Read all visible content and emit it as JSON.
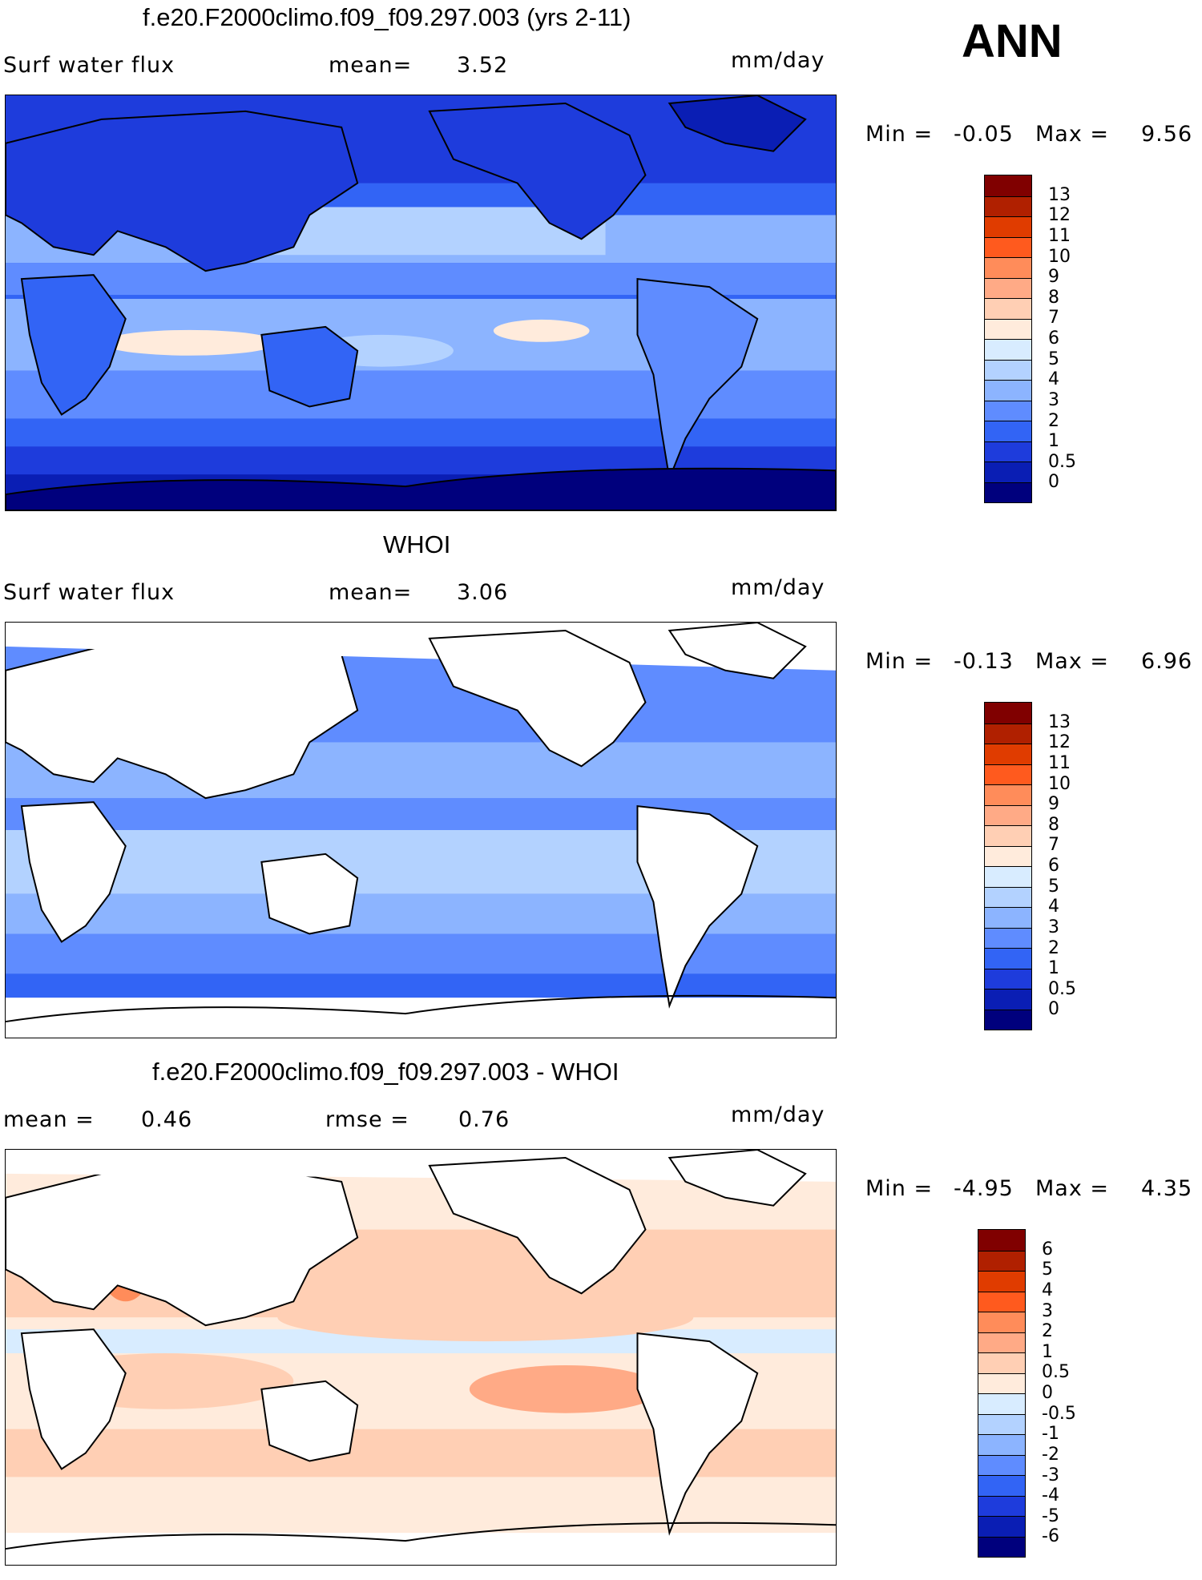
{
  "season": "ANN",
  "units": "mm/day",
  "panels": [
    {
      "id": "model",
      "title": "f.e20.F2000climo.f09_f09.297.003 (yrs 2-11)",
      "left_label": "Surf water flux",
      "stat1_label": "mean=",
      "stat1_value": "3.52",
      "minmax": {
        "min_label": "Min =",
        "min": "-0.05",
        "max_label": "Max =",
        "max": "9.56"
      },
      "levels": [
        "13",
        "12",
        "11",
        "10",
        "9",
        "8",
        "7",
        "6",
        "5",
        "4",
        "3",
        "2",
        "1",
        "0.5",
        "0"
      ]
    },
    {
      "id": "obs",
      "title": "WHOI",
      "left_label": "Surf water flux",
      "stat1_label": "mean=",
      "stat1_value": "3.06",
      "minmax": {
        "min_label": "Min =",
        "min": "-0.13",
        "max_label": "Max =",
        "max": "6.96"
      },
      "levels": [
        "13",
        "12",
        "11",
        "10",
        "9",
        "8",
        "7",
        "6",
        "5",
        "4",
        "3",
        "2",
        "1",
        "0.5",
        "0"
      ]
    },
    {
      "id": "diff",
      "title": "f.e20.F2000climo.f09_f09.297.003 - WHOI",
      "left_label": "mean =",
      "left_value": "0.46",
      "stat1_label": "rmse =",
      "stat1_value": "0.76",
      "minmax": {
        "min_label": "Min =",
        "min": "-4.95",
        "max_label": "Max =",
        "max": "4.35"
      },
      "levels": [
        "6",
        "5",
        "4",
        "3",
        "2",
        "1",
        "0.5",
        "0",
        "-0.5",
        "-1",
        "-2",
        "-3",
        "-4",
        "-5",
        "-6"
      ]
    }
  ],
  "colors": {
    "abs_scale": [
      "#800000",
      "#b02000",
      "#e03c00",
      "#ff5a1e",
      "#ff8c5a",
      "#ffaa86",
      "#ffcfb4",
      "#ffebdc",
      "#d8ecff",
      "#b3d2ff",
      "#8cb4ff",
      "#5f8cff",
      "#3264f5",
      "#1e3cdc",
      "#0a1eb4",
      "#00007d"
    ],
    "diff_scale": [
      "#800000",
      "#b02000",
      "#e03c00",
      "#ff5a1e",
      "#ff8c5a",
      "#ffaa86",
      "#ffcfb4",
      "#ffebdc",
      "#d8ecff",
      "#b3d2ff",
      "#8cb4ff",
      "#5f8cff",
      "#3264f5",
      "#1e3cdc",
      "#0a1eb4",
      "#00007d"
    ],
    "land_obs": "#ffffff"
  }
}
